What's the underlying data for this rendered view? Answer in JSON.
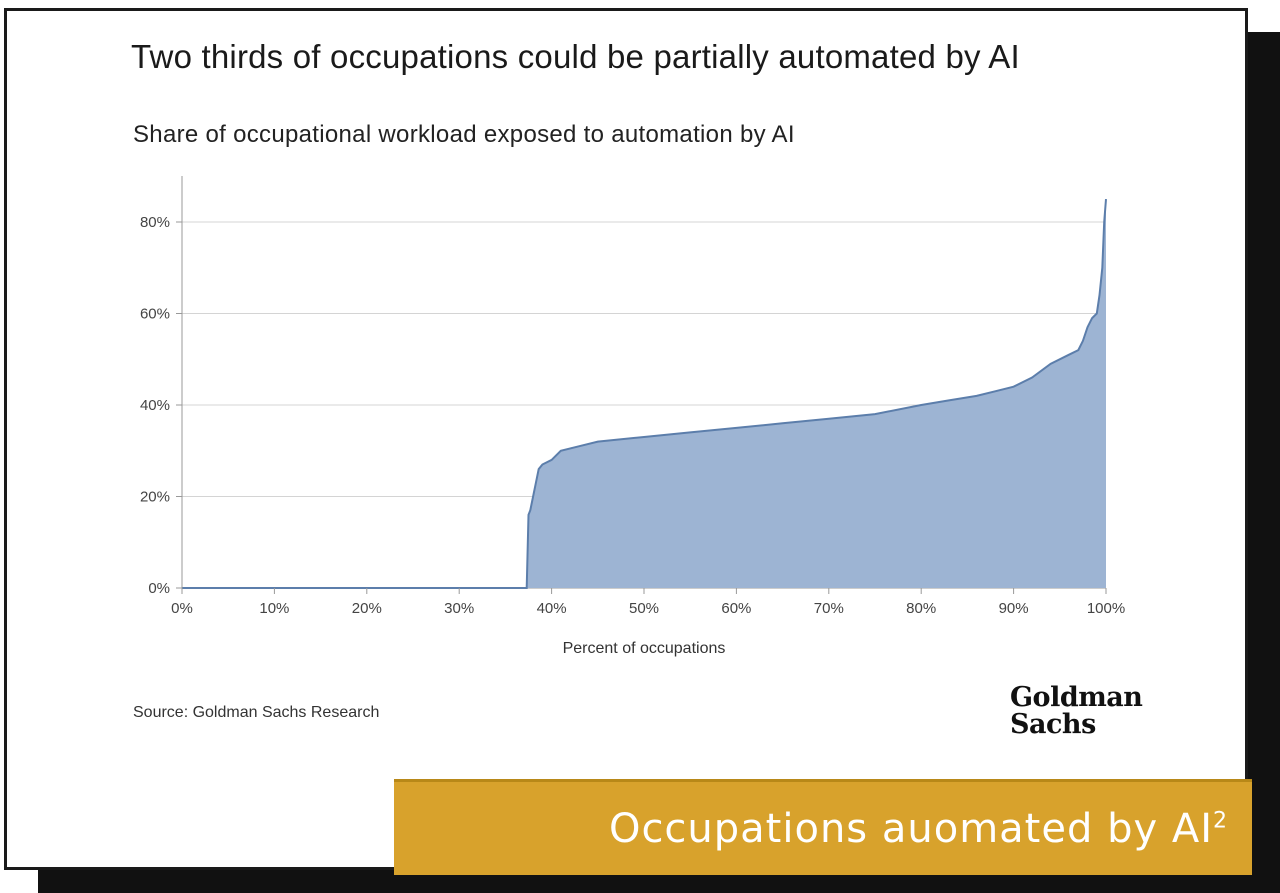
{
  "banner": {
    "text": "Occupations auomated by AI",
    "sup": "2"
  },
  "source": "Source: Goldman Sachs Research",
  "logo": {
    "line1": "Goldman",
    "line2": "Sachs"
  },
  "colors": {
    "fill": "#9db4d3",
    "line": "#5c7eab",
    "banner": "#d8a22c"
  },
  "chart_data": {
    "type": "area",
    "title": "Two thirds of occupations could be partially automated by AI",
    "subtitle": "Share of occupational workload exposed to automation by AI",
    "xlabel": "Percent of occupations",
    "ylabel": "",
    "xlim": [
      0,
      100
    ],
    "ylim": [
      0,
      90
    ],
    "x_ticks": [
      "0%",
      "10%",
      "20%",
      "30%",
      "40%",
      "50%",
      "60%",
      "70%",
      "80%",
      "90%",
      "100%"
    ],
    "y_ticks": [
      "0%",
      "20%",
      "40%",
      "60%",
      "80%"
    ],
    "grid": "horizontal",
    "series": [
      {
        "x": [
          0,
          37.3,
          37.5,
          37.7,
          38.0,
          38.3,
          38.6,
          39.0,
          40,
          41,
          43,
          45,
          50,
          55,
          60,
          65,
          70,
          75,
          80,
          83,
          86,
          88,
          90,
          92,
          94,
          96,
          97,
          97.5,
          98,
          98.5,
          99,
          99.3,
          99.6,
          99.8,
          100
        ],
        "y": [
          0,
          0,
          16,
          17,
          20,
          23,
          26,
          27,
          28,
          30,
          31,
          32,
          33,
          34,
          35,
          36,
          37,
          38,
          40,
          41,
          42,
          43,
          44,
          46,
          49,
          51,
          52,
          54,
          57,
          59,
          60,
          64,
          70,
          80,
          85
        ]
      }
    ]
  }
}
